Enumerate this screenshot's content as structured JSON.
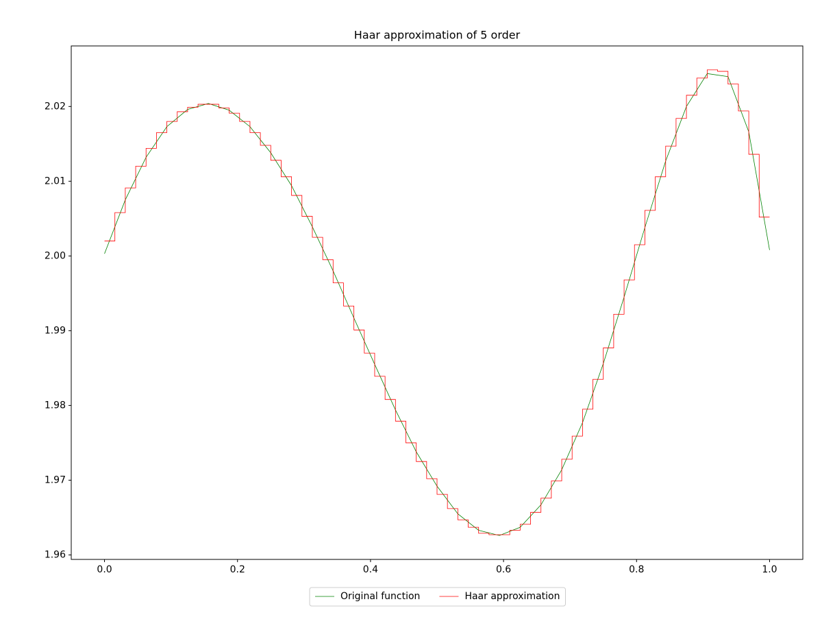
{
  "chart_data": {
    "type": "line",
    "title": "Haar approximation of 5 order",
    "xlim": [
      -0.05,
      1.05
    ],
    "ylim": [
      1.9594,
      2.0281
    ],
    "xticks": [
      {
        "value": 0,
        "label": "0.0"
      },
      0.2,
      0.4,
      0.6,
      0.8,
      {
        "value": 1,
        "label": "1.0"
      }
    ],
    "yticks": [
      1.96,
      1.97,
      1.98,
      1.99,
      {
        "value": 2,
        "label": "2.00"
      },
      2.01,
      2.02
    ],
    "grid": false,
    "legend": "lower center",
    "series": [
      {
        "name": "Original function",
        "color": "#008000",
        "drawstyle": "default",
        "x": [
          0,
          0.03125,
          0.0625,
          0.09375,
          0.125,
          0.15625,
          0.1875,
          0.21875,
          0.25,
          0.28125,
          0.3125,
          0.34375,
          0.375,
          0.40625,
          0.4375,
          0.46875,
          0.5,
          0.53125,
          0.5625,
          0.59375,
          0.625,
          0.65625,
          0.6875,
          0.71875,
          0.75,
          0.78125,
          0.8125,
          0.84375,
          0.875,
          0.90625,
          0.9375,
          0.96875,
          1
        ],
        "values": [
          2.0003,
          2.0075,
          2.0132,
          2.0173,
          2.0196,
          2.0204,
          2.0195,
          2.0173,
          2.0138,
          2.0094,
          2.0039,
          1.998,
          1.9917,
          1.9855,
          1.9794,
          1.9738,
          1.9692,
          1.9655,
          1.9633,
          1.9626,
          1.9637,
          1.9667,
          1.9714,
          1.9777,
          1.9856,
          1.9945,
          2.0038,
          2.0127,
          2.02,
          2.0244,
          2.024,
          2.0166,
          2.0008
        ]
      },
      {
        "name": "Haar approximation",
        "color": "#ff0000",
        "drawstyle": "steps-post",
        "x": [
          0,
          0.015625,
          0.03125,
          0.046875,
          0.0625,
          0.078125,
          0.09375,
          0.109375,
          0.125,
          0.140625,
          0.15625,
          0.171875,
          0.1875,
          0.203125,
          0.21875,
          0.234375,
          0.25,
          0.265625,
          0.28125,
          0.296875,
          0.3125,
          0.328125,
          0.34375,
          0.359375,
          0.375,
          0.390625,
          0.40625,
          0.421875,
          0.4375,
          0.453125,
          0.46875,
          0.484375,
          0.5,
          0.515625,
          0.53125,
          0.546875,
          0.5625,
          0.578125,
          0.59375,
          0.609375,
          0.625,
          0.640625,
          0.65625,
          0.671875,
          0.6875,
          0.703125,
          0.71875,
          0.734375,
          0.75,
          0.765625,
          0.78125,
          0.796875,
          0.8125,
          0.828125,
          0.84375,
          0.859375,
          0.875,
          0.890625,
          0.90625,
          0.921875,
          0.9375,
          0.953125,
          0.96875,
          0.984375,
          1
        ],
        "values": [
          2.002,
          2.0058,
          2.0091,
          2.012,
          2.0144,
          2.0165,
          2.018,
          2.0193,
          2.0199,
          2.0203,
          2.0203,
          2.0198,
          2.0191,
          2.018,
          2.0165,
          2.0148,
          2.0128,
          2.0106,
          2.0081,
          2.0053,
          2.0025,
          1.9995,
          1.9964,
          1.9933,
          1.9901,
          1.987,
          1.9839,
          1.9808,
          1.9779,
          1.975,
          1.9725,
          1.9702,
          1.9681,
          1.9662,
          1.9647,
          1.9637,
          1.9629,
          1.9627,
          1.9627,
          1.9633,
          1.9641,
          1.9657,
          1.9676,
          1.9699,
          1.9728,
          1.9759,
          1.9795,
          1.9835,
          1.9877,
          1.9922,
          1.9968,
          2.0015,
          2.0061,
          2.0106,
          2.0147,
          2.0184,
          2.0215,
          2.0238,
          2.0249,
          2.0247,
          2.023,
          2.0194,
          2.0136,
          2.0052,
          2.0052
        ]
      }
    ]
  }
}
